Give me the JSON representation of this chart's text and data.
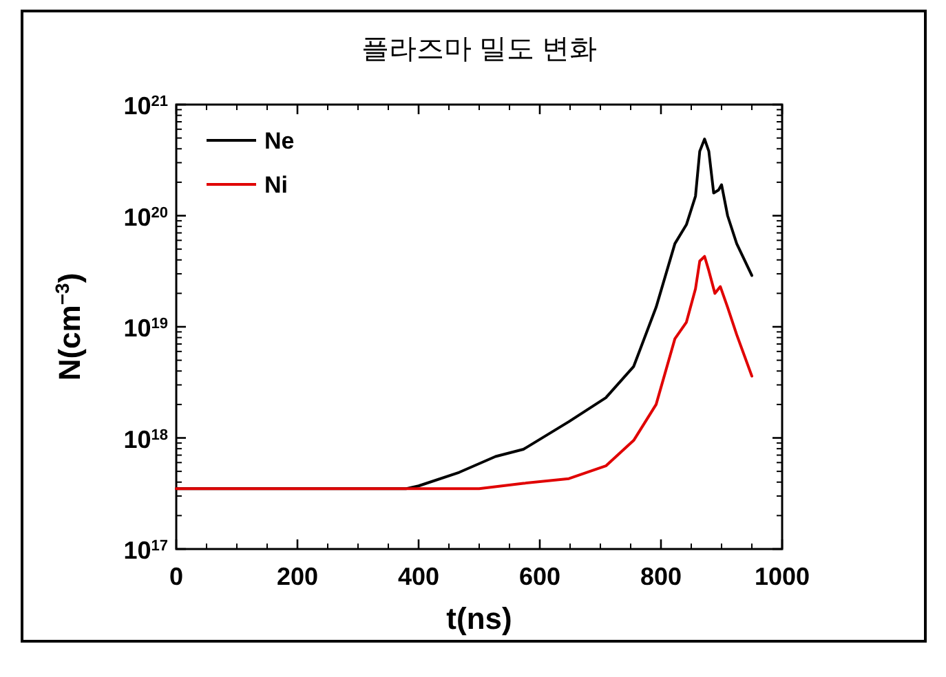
{
  "chart_data": {
    "type": "line",
    "title": "플라즈마 밀도 변화",
    "xlabel": "t(ns)",
    "ylabel": "N(cm$^{−3}$)",
    "xlim": [
      0,
      1000
    ],
    "xticks": [
      0,
      200,
      400,
      600,
      800,
      1000
    ],
    "ylim": [
      1e+17,
      1e+21
    ],
    "log": "y",
    "yticks": [
      {
        "value": 1e+17,
        "label": "10$^{17}$"
      },
      {
        "value": 1e+18,
        "label": "10$^{18}$"
      },
      {
        "value": 1e+19,
        "label": "10$^{19}$"
      },
      {
        "value": 1e+20,
        "label": "10$^{20}$"
      },
      {
        "value": 1e+21,
        "label": "10$^{21}$"
      }
    ],
    "grid": false,
    "legend": "top left",
    "line_style": "solid",
    "marker": "none",
    "series": [
      {
        "name": "Ne",
        "color": "#000000",
        "x": [
          0,
          380,
          400,
          467,
          527,
          573,
          648,
          709,
          755,
          792,
          823,
          842,
          857,
          864,
          872,
          879,
          887,
          895,
          900,
          910,
          925,
          950
        ],
        "values": [
          3.5e+17,
          3.5e+17,
          3.7e+17,
          4.9e+17,
          6.8e+17,
          7.9e+17,
          1.4e+18,
          2.3e+18,
          4.4e+18,
          1.5e+19,
          5.6e+19,
          8.3e+19,
          1.5e+20,
          3.8e+20,
          4.9e+20,
          3.8e+20,
          1.6e+20,
          1.7e+20,
          1.9e+20,
          1e+20,
          5.6e+19,
          2.9e+19
        ]
      },
      {
        "name": "Ni",
        "color": "#e00000",
        "x": [
          0,
          500,
          573,
          648,
          709,
          755,
          792,
          823,
          842,
          857,
          864,
          872,
          879,
          889,
          898,
          910,
          925,
          950
        ],
        "values": [
          3.5e+17,
          3.5e+17,
          3.9e+17,
          4.3e+17,
          5.6e+17,
          9.5e+17,
          2e+18,
          7.8e+18,
          1.1e+19,
          2.2e+19,
          3.9e+19,
          4.3e+19,
          3.2e+19,
          2e+19,
          2.3e+19,
          1.5e+19,
          8.5e+18,
          3.6e+18
        ]
      }
    ]
  }
}
